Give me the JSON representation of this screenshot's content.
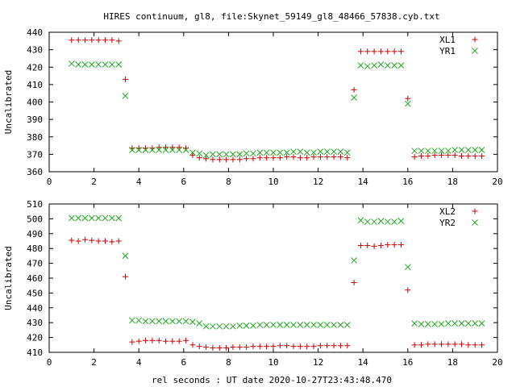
{
  "title": "HIRES continuum, gl8, file:Skynet_59149_gl8_48466_57838.cyb.txt",
  "xlabel": "rel seconds : UT date 2020-10-27T23:43:48.470",
  "colors": {
    "xl": "#cc0000",
    "yr": "#22aa22"
  },
  "chart_data": [
    {
      "type": "scatter",
      "ylabel": "Uncalibrated",
      "xlim": [
        0,
        20
      ],
      "ylim": [
        360,
        440
      ],
      "xticks": [
        "0",
        "2",
        "4",
        "6",
        "8",
        "10",
        "12",
        "14",
        "16",
        "18",
        "20"
      ],
      "yticks": [
        "360",
        "370",
        "380",
        "390",
        "400",
        "410",
        "420",
        "430",
        "440"
      ],
      "legend_position": "top-right",
      "series": [
        {
          "name": "XL1",
          "marker": "plus",
          "points": [
            [
              1.0,
              435.5
            ],
            [
              1.3,
              435.5
            ],
            [
              1.6,
              435.5
            ],
            [
              1.9,
              435.5
            ],
            [
              2.2,
              435.5
            ],
            [
              2.5,
              435.5
            ],
            [
              2.8,
              435.5
            ],
            [
              3.1,
              435
            ],
            [
              3.4,
              413
            ],
            [
              3.7,
              373.5
            ],
            [
              4.0,
              373.5
            ],
            [
              4.3,
              373.5
            ],
            [
              4.6,
              373.5
            ],
            [
              4.9,
              374
            ],
            [
              5.2,
              374
            ],
            [
              5.5,
              374
            ],
            [
              5.8,
              374
            ],
            [
              6.1,
              373.5
            ],
            [
              6.4,
              369.5
            ],
            [
              6.7,
              368
            ],
            [
              7.0,
              367.5
            ],
            [
              7.3,
              367
            ],
            [
              7.6,
              367
            ],
            [
              7.9,
              367
            ],
            [
              8.2,
              367
            ],
            [
              8.5,
              367
            ],
            [
              8.8,
              367.5
            ],
            [
              9.1,
              367.5
            ],
            [
              9.4,
              368
            ],
            [
              9.7,
              368
            ],
            [
              10.0,
              368
            ],
            [
              10.3,
              368
            ],
            [
              10.6,
              368.5
            ],
            [
              10.9,
              368.5
            ],
            [
              11.2,
              368
            ],
            [
              11.5,
              368
            ],
            [
              11.8,
              368.5
            ],
            [
              12.1,
              368.5
            ],
            [
              12.4,
              368.5
            ],
            [
              12.7,
              368.5
            ],
            [
              13.0,
              368.5
            ],
            [
              13.3,
              368
            ],
            [
              13.6,
              407
            ],
            [
              13.9,
              429
            ],
            [
              14.2,
              429
            ],
            [
              14.5,
              429
            ],
            [
              14.8,
              429
            ],
            [
              15.1,
              429
            ],
            [
              15.4,
              429
            ],
            [
              15.7,
              429
            ],
            [
              16.0,
              402
            ],
            [
              16.3,
              368.5
            ],
            [
              16.6,
              369
            ],
            [
              16.9,
              369
            ],
            [
              17.2,
              369.5
            ],
            [
              17.5,
              369.5
            ],
            [
              17.8,
              369.5
            ],
            [
              18.1,
              369.5
            ],
            [
              18.4,
              369
            ],
            [
              18.7,
              369
            ],
            [
              19.0,
              369
            ],
            [
              19.3,
              369
            ]
          ]
        },
        {
          "name": "YR1",
          "marker": "cross",
          "points": [
            [
              1.0,
              422
            ],
            [
              1.3,
              421.5
            ],
            [
              1.6,
              421.5
            ],
            [
              1.9,
              421.5
            ],
            [
              2.2,
              421.5
            ],
            [
              2.5,
              421.5
            ],
            [
              2.8,
              421.5
            ],
            [
              3.1,
              421.5
            ],
            [
              3.4,
              403.5
            ],
            [
              3.7,
              372.5
            ],
            [
              4.0,
              372.5
            ],
            [
              4.3,
              372.5
            ],
            [
              4.6,
              372.5
            ],
            [
              4.9,
              372.5
            ],
            [
              5.2,
              372.5
            ],
            [
              5.5,
              372.5
            ],
            [
              5.8,
              372.5
            ],
            [
              6.1,
              372.5
            ],
            [
              6.4,
              371
            ],
            [
              6.7,
              370.5
            ],
            [
              7.0,
              369.5
            ],
            [
              7.3,
              370
            ],
            [
              7.6,
              370
            ],
            [
              7.9,
              370
            ],
            [
              8.2,
              370
            ],
            [
              8.5,
              370
            ],
            [
              8.8,
              370.5
            ],
            [
              9.1,
              370.5
            ],
            [
              9.4,
              371
            ],
            [
              9.7,
              371
            ],
            [
              10.0,
              371
            ],
            [
              10.3,
              371
            ],
            [
              10.6,
              371
            ],
            [
              10.9,
              371.5
            ],
            [
              11.2,
              371.5
            ],
            [
              11.5,
              371
            ],
            [
              11.8,
              371
            ],
            [
              12.1,
              371.5
            ],
            [
              12.4,
              371.5
            ],
            [
              12.7,
              371.5
            ],
            [
              13.0,
              371.5
            ],
            [
              13.3,
              371
            ],
            [
              13.6,
              402.5
            ],
            [
              13.9,
              421
            ],
            [
              14.2,
              420.5
            ],
            [
              14.5,
              421
            ],
            [
              14.8,
              421.5
            ],
            [
              15.1,
              421
            ],
            [
              15.4,
              421
            ],
            [
              15.7,
              421
            ],
            [
              16.0,
              399
            ],
            [
              16.3,
              372
            ],
            [
              16.6,
              372
            ],
            [
              16.9,
              372
            ],
            [
              17.2,
              372
            ],
            [
              17.5,
              372
            ],
            [
              17.8,
              372
            ],
            [
              18.1,
              372.5
            ],
            [
              18.4,
              372.5
            ],
            [
              18.7,
              372.5
            ],
            [
              19.0,
              372.5
            ],
            [
              19.3,
              372.5
            ]
          ]
        }
      ]
    },
    {
      "type": "scatter",
      "ylabel": "Uncalibrated",
      "xlim": [
        0,
        20
      ],
      "ylim": [
        410,
        510
      ],
      "xticks": [
        "0",
        "2",
        "4",
        "6",
        "8",
        "10",
        "12",
        "14",
        "16",
        "18",
        "20"
      ],
      "yticks": [
        "410",
        "420",
        "430",
        "440",
        "450",
        "460",
        "470",
        "480",
        "490",
        "500",
        "510"
      ],
      "legend_position": "top-right",
      "series": [
        {
          "name": "XL2",
          "marker": "plus",
          "points": [
            [
              1.0,
              485.5
            ],
            [
              1.3,
              485
            ],
            [
              1.6,
              486
            ],
            [
              1.9,
              485.5
            ],
            [
              2.2,
              485
            ],
            [
              2.5,
              485
            ],
            [
              2.8,
              484.5
            ],
            [
              3.1,
              485
            ],
            [
              3.4,
              461
            ],
            [
              3.7,
              417
            ],
            [
              4.0,
              417.5
            ],
            [
              4.3,
              418
            ],
            [
              4.6,
              418
            ],
            [
              4.9,
              418
            ],
            [
              5.2,
              417.5
            ],
            [
              5.5,
              417.5
            ],
            [
              5.8,
              417.5
            ],
            [
              6.1,
              418
            ],
            [
              6.4,
              415
            ],
            [
              6.7,
              414
            ],
            [
              7.0,
              413.5
            ],
            [
              7.3,
              413
            ],
            [
              7.6,
              413
            ],
            [
              7.9,
              413
            ],
            [
              8.2,
              413.5
            ],
            [
              8.5,
              413.5
            ],
            [
              8.8,
              413.5
            ],
            [
              9.1,
              414
            ],
            [
              9.4,
              414
            ],
            [
              9.7,
              414
            ],
            [
              10.0,
              414
            ],
            [
              10.3,
              414.5
            ],
            [
              10.6,
              414.5
            ],
            [
              10.9,
              414
            ],
            [
              11.2,
              414
            ],
            [
              11.5,
              414
            ],
            [
              11.8,
              414
            ],
            [
              12.1,
              414.5
            ],
            [
              12.4,
              414.5
            ],
            [
              12.7,
              414.5
            ],
            [
              13.0,
              414.5
            ],
            [
              13.3,
              414.5
            ],
            [
              13.6,
              457
            ],
            [
              13.9,
              482
            ],
            [
              14.2,
              482
            ],
            [
              14.5,
              481.5
            ],
            [
              14.8,
              482
            ],
            [
              15.1,
              482.5
            ],
            [
              15.4,
              482.5
            ],
            [
              15.7,
              482.5
            ],
            [
              16.0,
              452
            ],
            [
              16.3,
              415
            ],
            [
              16.6,
              415
            ],
            [
              16.9,
              415.5
            ],
            [
              17.2,
              415.5
            ],
            [
              17.5,
              415.5
            ],
            [
              17.8,
              415.5
            ],
            [
              18.1,
              415.5
            ],
            [
              18.4,
              415.5
            ],
            [
              18.7,
              415
            ],
            [
              19.0,
              415
            ],
            [
              19.3,
              415
            ]
          ]
        },
        {
          "name": "YR2",
          "marker": "cross",
          "points": [
            [
              1.0,
              500.5
            ],
            [
              1.3,
              500.5
            ],
            [
              1.6,
              500.5
            ],
            [
              1.9,
              500.5
            ],
            [
              2.2,
              500.5
            ],
            [
              2.5,
              500.5
            ],
            [
              2.8,
              500.5
            ],
            [
              3.1,
              500.5
            ],
            [
              3.4,
              475
            ],
            [
              3.7,
              431.5
            ],
            [
              4.0,
              431.5
            ],
            [
              4.3,
              431
            ],
            [
              4.6,
              431
            ],
            [
              4.9,
              431
            ],
            [
              5.2,
              431
            ],
            [
              5.5,
              431
            ],
            [
              5.8,
              431
            ],
            [
              6.1,
              431
            ],
            [
              6.4,
              430.5
            ],
            [
              6.7,
              429.5
            ],
            [
              7.0,
              427.5
            ],
            [
              7.3,
              427.5
            ],
            [
              7.6,
              427.5
            ],
            [
              7.9,
              427.5
            ],
            [
              8.2,
              427.5
            ],
            [
              8.5,
              428
            ],
            [
              8.8,
              428
            ],
            [
              9.1,
              428
            ],
            [
              9.4,
              428.5
            ],
            [
              9.7,
              428.5
            ],
            [
              10.0,
              428.5
            ],
            [
              10.3,
              428.5
            ],
            [
              10.6,
              428.5
            ],
            [
              10.9,
              428.5
            ],
            [
              11.2,
              428.5
            ],
            [
              11.5,
              428.5
            ],
            [
              11.8,
              428.5
            ],
            [
              12.1,
              428.5
            ],
            [
              12.4,
              428.5
            ],
            [
              12.7,
              428.5
            ],
            [
              13.0,
              428.5
            ],
            [
              13.3,
              428.5
            ],
            [
              13.6,
              472
            ],
            [
              13.9,
              499
            ],
            [
              14.2,
              498
            ],
            [
              14.5,
              498
            ],
            [
              14.8,
              498.5
            ],
            [
              15.1,
              498
            ],
            [
              15.4,
              498
            ],
            [
              15.7,
              498.5
            ],
            [
              16.0,
              467.5
            ],
            [
              16.3,
              429.5
            ],
            [
              16.6,
              429
            ],
            [
              16.9,
              429
            ],
            [
              17.2,
              429
            ],
            [
              17.5,
              429
            ],
            [
              17.8,
              429.5
            ],
            [
              18.1,
              429.5
            ],
            [
              18.4,
              429.5
            ],
            [
              18.7,
              429.5
            ],
            [
              19.0,
              429.5
            ],
            [
              19.3,
              429.5
            ]
          ]
        }
      ]
    }
  ]
}
